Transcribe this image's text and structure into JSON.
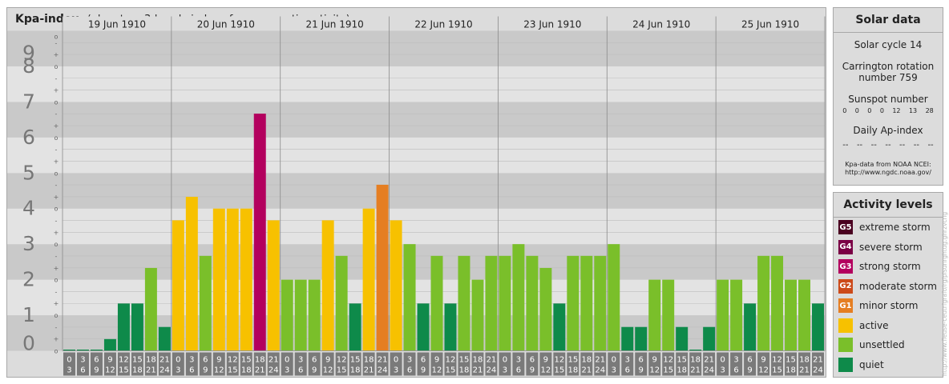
{
  "header": {
    "title": "Kpa-index",
    "subtitle": "(planetary 3-hourly index of geomagnetic activity)"
  },
  "solar": {
    "title": "Solar data",
    "cycle": "Solar cycle 14",
    "carrington_line1": "Carrington rotation",
    "carrington_line2": "number 759",
    "sunspot_label": "Sunspot number",
    "sunspots": [
      "0",
      "0",
      "0",
      "0",
      "12",
      "13",
      "28"
    ],
    "ap_label": "Daily Ap-index",
    "ap": [
      "--",
      "--",
      "--",
      "--",
      "--",
      "--",
      "--"
    ],
    "source_line1": "Kpa-data from NOAA NCEI:",
    "source_line2": "http://www.ngdc.noaa.gov/"
  },
  "levels": {
    "title": "Activity levels",
    "items": [
      {
        "code": "G5",
        "label": "extreme storm",
        "color": "#4a0020"
      },
      {
        "code": "G4",
        "label": "severe storm",
        "color": "#7a0045"
      },
      {
        "code": "G3",
        "label": "strong storm",
        "color": "#b3005e"
      },
      {
        "code": "G2",
        "label": "moderate storm",
        "color": "#cc4a1a"
      },
      {
        "code": "G1",
        "label": "minor storm",
        "color": "#e57e22"
      },
      {
        "code": "",
        "label": "active",
        "color": "#f7c100"
      },
      {
        "code": "",
        "label": "unsettled",
        "color": "#7abf2a"
      },
      {
        "code": "",
        "label": "quiet",
        "color": "#0e8a4a"
      }
    ]
  },
  "credit": "http://www.fleuse-ceutrfgrafo/rg/pisunrghtug.ghrzvcng",
  "chart_data": {
    "type": "bar",
    "title": "Kpa-index",
    "ylim": [
      0,
      9
    ],
    "yticks": [
      "0",
      "1",
      "2",
      "3",
      "4",
      "5",
      "6",
      "7",
      "8",
      "9"
    ],
    "minor_ticks": [
      "o",
      "+",
      "-"
    ],
    "days": [
      "19 Jun 1910",
      "20 Jun 1910",
      "21 Jun 1910",
      "22 Jun 1910",
      "23 Jun 1910",
      "24 Jun 1910",
      "25 Jun 1910"
    ],
    "interval_start": [
      "0",
      "3",
      "6",
      "9",
      "12",
      "15",
      "18",
      "21"
    ],
    "interval_end": [
      "3",
      "6",
      "9",
      "12",
      "15",
      "18",
      "21",
      "24"
    ],
    "colors": {
      "quiet": "#0e8a4a",
      "unsettled": "#7abf2a",
      "active": "#f7c100",
      "g1": "#e57e22",
      "g2": "#cc4a1a",
      "g3": "#b3005e"
    },
    "values": [
      0.03,
      0.03,
      0.03,
      0.33,
      1.33,
      1.33,
      2.33,
      0.67,
      3.67,
      4.33,
      2.67,
      4.0,
      4.0,
      4.0,
      6.67,
      3.67,
      2.0,
      2.0,
      2.0,
      3.67,
      2.67,
      1.33,
      4.0,
      4.67,
      3.67,
      3.0,
      1.33,
      2.67,
      1.33,
      2.67,
      2.0,
      2.67,
      2.67,
      3.0,
      2.67,
      2.33,
      1.33,
      2.67,
      2.67,
      2.67,
      3.0,
      0.67,
      0.67,
      2.0,
      2.0,
      0.67,
      0.0,
      0.67,
      2.0,
      2.0,
      1.33,
      2.67,
      2.67,
      2.0,
      2.0,
      1.33
    ]
  }
}
